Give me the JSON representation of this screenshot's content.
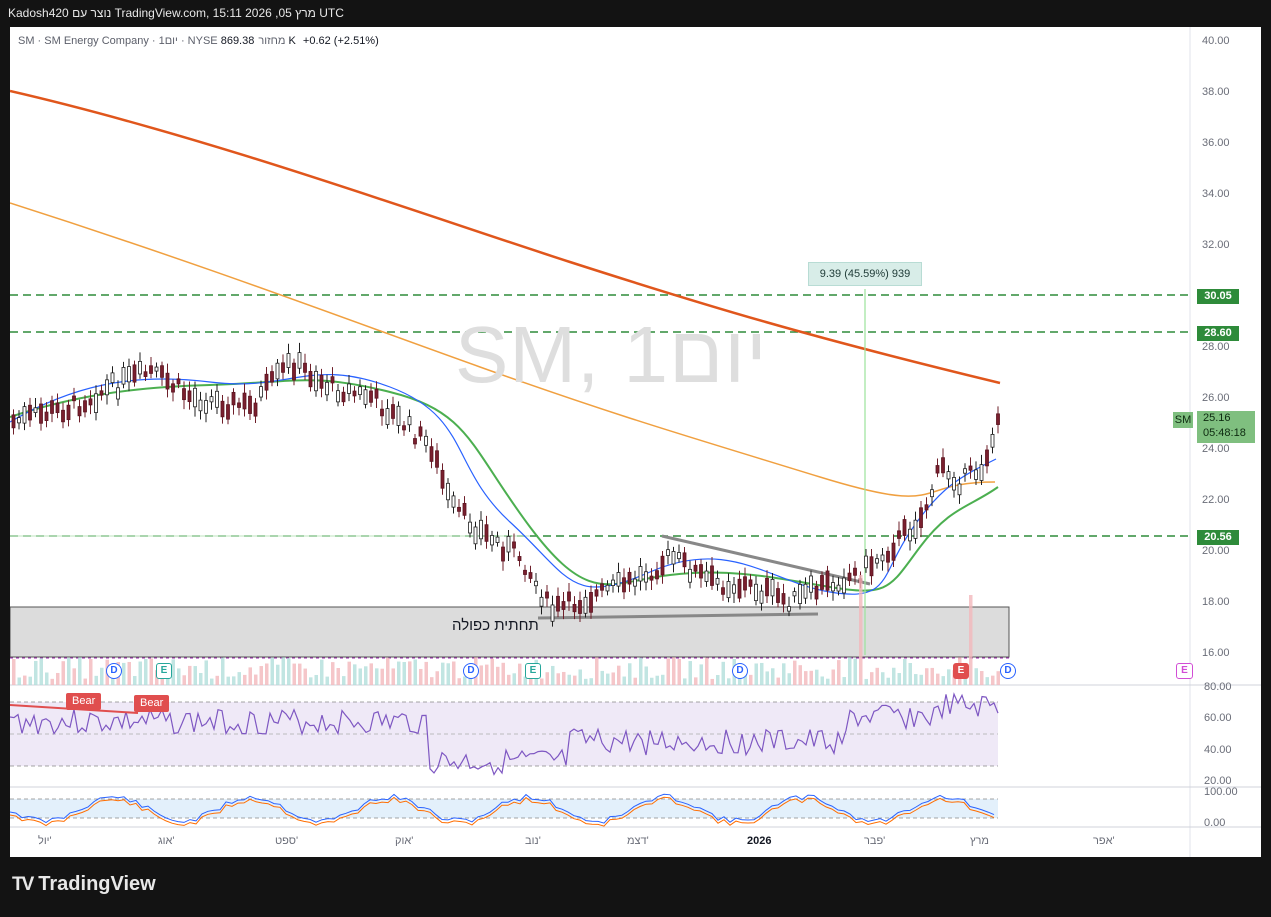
{
  "top_bar": {
    "text": "Kadosh420 נוצר עם TradingView.com, 15:11 2026 ,05 מרץ UTC"
  },
  "legend": {
    "symbol": "SM · SM Energy Company · 1יום · NYSE",
    "volume_label": "מחזור",
    "volume_value": "869.38 K",
    "change": "+0.62 (+2.51%)"
  },
  "watermark": "SM, 1יום",
  "price_axis": [
    "40.00",
    "38.00",
    "36.00",
    "34.00",
    "32.00",
    "28.00",
    "26.00",
    "24.00",
    "22.00",
    "20.00",
    "18.00",
    "16.00"
  ],
  "level_tags": [
    {
      "label": "30.05"
    },
    {
      "label": "28.60"
    },
    {
      "label": "20.56"
    }
  ],
  "last_price": {
    "symbol": "SM",
    "price": "25.16",
    "countdown": "05:48:18"
  },
  "measure_label": "9.39 (45.59%) 939",
  "pattern_label": "תחתית כפולה",
  "time_axis": [
    "יול'",
    "אוג'",
    "ספט'",
    "אוק'",
    "נוב'",
    "דצמ'",
    "2026",
    "פבר'",
    "מרץ",
    "אפר'"
  ],
  "rsi_axis": [
    "80.00",
    "60.00",
    "40.00",
    "20.00"
  ],
  "stoch_axis": [
    "100.00",
    "0.00"
  ],
  "badges": [
    "Bear",
    "Bear"
  ],
  "events": [
    {
      "type": "d",
      "label": "D"
    },
    {
      "type": "e",
      "label": "E"
    },
    {
      "type": "d",
      "label": "D"
    },
    {
      "type": "e",
      "label": "E"
    },
    {
      "type": "d",
      "label": "D"
    },
    {
      "type": "e-red",
      "label": "E"
    },
    {
      "type": "d",
      "label": "D"
    },
    {
      "type": "e-pink",
      "label": "E"
    }
  ],
  "footer": {
    "brand": "TradingView"
  },
  "colors": {
    "ma200": "#e0561c",
    "ma100": "#f0a040",
    "ma20": "#4caf50",
    "ma10": "#2962ff",
    "level_line": "#2e8b3a",
    "rsi": "#7e57c2",
    "stoch_k": "#2962ff",
    "stoch_d": "#ff6d00"
  }
}
